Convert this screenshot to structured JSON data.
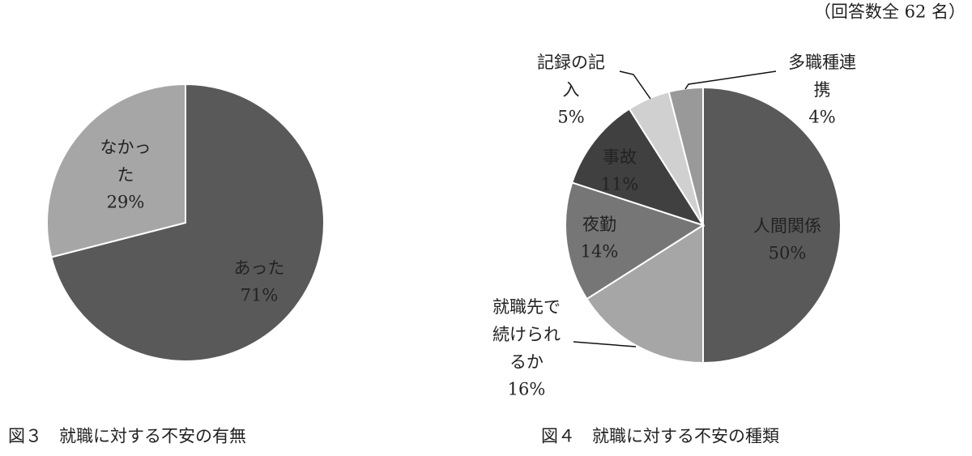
{
  "note": "（回答数全 62 名）",
  "chart_data": [
    {
      "type": "pie",
      "title": "図３　就職に対する不安の有無",
      "categories": [
        "あった",
        "なかった"
      ],
      "values": [
        71,
        29
      ],
      "value_labels": [
        "71%",
        "29%"
      ],
      "colors": [
        "#595959",
        "#a6a6a6"
      ]
    },
    {
      "type": "pie",
      "title": "図４　就職に対する不安の種類",
      "categories": [
        "人間関係",
        "就職先で続けられるか",
        "夜勤",
        "事故",
        "記録の記入",
        "多職種連携"
      ],
      "values": [
        50,
        16,
        14,
        11,
        5,
        4
      ],
      "value_labels": [
        "50%",
        "16%",
        "14%",
        "11%",
        "5%",
        "4%"
      ],
      "colors": [
        "#595959",
        "#a6a6a6",
        "#767676",
        "#404040",
        "#d0d0d0",
        "#999999"
      ]
    }
  ]
}
